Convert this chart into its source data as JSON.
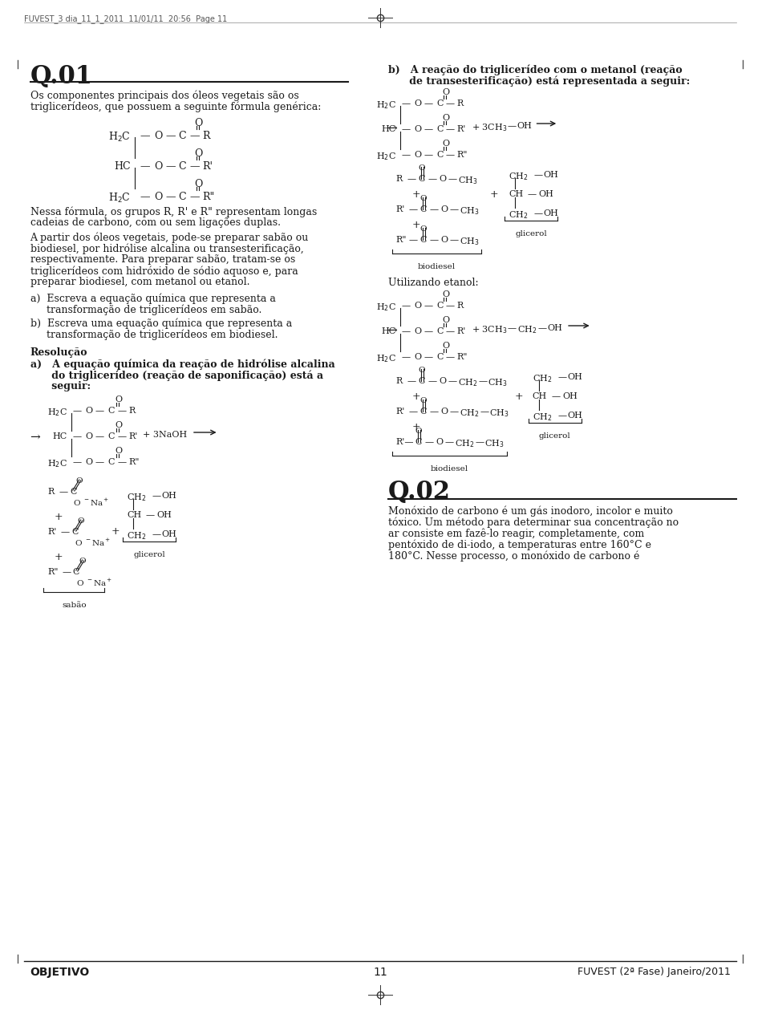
{
  "bg_color": "#ffffff",
  "text_color": "#1a1a1a",
  "page_width": 9.6,
  "page_height": 12.59,
  "header_text": "FUVEST_3 dia_11_1_2011  11/01/11  20:56  Page 11",
  "footer_left": "OBJETIVO",
  "footer_center": "11",
  "footer_right": "FUVEST (2ª Fase) Janeiro/2011",
  "q01_title": "Q.01",
  "q01_line1": "Os componentes principais dos óleos vegetais são os",
  "q01_line2": "triglicerídeos, que possuem a seguinte fórmula genérica:",
  "q01_formula_note1": "Nessa fórmula, os grupos R, R' e R\" representam longas",
  "q01_formula_note2": "cadeias de carbono, com ou sem ligações duplas.",
  "q01_para1_1": "A partir dos óleos vegetais, pode-se preparar sabão ou",
  "q01_para1_2": "biodiesel, por hidrólise alcalina ou transesterificação,",
  "q01_para1_3": "respectivamente. Para preparar sabão, tratam-se os",
  "q01_para1_4": "triglicerídeos com hidróxido de sódio aquoso e, para",
  "q01_para1_5": "preparar biodiesel, com metanol ou etanol.",
  "q01_a_label": "a)  Escreva a equação química que representa a",
  "q01_a_label2": "     transformação de triglicerídeos em sabão.",
  "q01_b_label": "b)  Escreva uma equação química que representa a",
  "q01_b_label2": "     transformação de triglicerídeos em biodiesel.",
  "resolucao": "Resolução",
  "resolucao_a": "a)   A equação química da reação de hidrólise alcalina",
  "resolucao_a2": "      do triglicerídeo (reação de saponificação) está a",
  "resolucao_a3": "      seguir:",
  "resolucao_b_title": "b)   A reação do triglicerídeo com o metanol (reação",
  "resolucao_b_title2": "      de transesterificação) está representada a seguir:",
  "utilizando_etanol": "Utilizando etanol:",
  "q02_title": "Q.02",
  "q02_line1": "Monóxido de carbono é um gás inodoro, incolor e muito",
  "q02_line2": "tóxico. Um método para determinar sua concentração no",
  "q02_line3": "ar consiste em fazê-lo reagir, completamente, com",
  "q02_line4": "pentóxido de di-iodo, a temperaturas entre 160°C e",
  "q02_line5": "180°C. Nesse processo, o monóxido de carbono é"
}
